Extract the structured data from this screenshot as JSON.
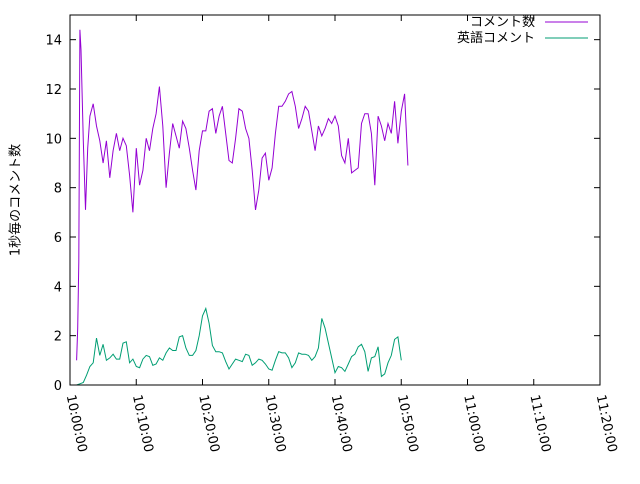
{
  "chart_data": {
    "type": "line",
    "title": "",
    "xlabel": "",
    "ylabel": "1秒毎のコメント数",
    "xlim": [
      "10:00:00",
      "11:20:00"
    ],
    "ylim": [
      0,
      15
    ],
    "xticks": [
      "10:00:00",
      "10:10:00",
      "10:20:00",
      "10:30:00",
      "10:40:00",
      "10:50:00",
      "11:00:00",
      "11:10:00",
      "11:20:00"
    ],
    "yticks": [
      "0",
      "2",
      "4",
      "6",
      "8",
      "10",
      "12",
      "14"
    ],
    "legend_position": "top-right",
    "grid": false,
    "series": [
      {
        "name": "コメント数",
        "color": "#9400d3",
        "points": [
          [
            "10:01:00",
            1.0
          ],
          [
            "10:01:10",
            2.3
          ],
          [
            "10:01:20",
            5.0
          ],
          [
            "10:01:30",
            14.4
          ],
          [
            "10:01:40",
            13.6
          ],
          [
            "10:02:00",
            9.9
          ],
          [
            "10:02:20",
            7.1
          ],
          [
            "10:02:40",
            9.6
          ],
          [
            "10:03:00",
            10.9
          ],
          [
            "10:03:30",
            11.4
          ],
          [
            "10:04:00",
            10.5
          ],
          [
            "10:04:30",
            9.9
          ],
          [
            "10:05:00",
            9.0
          ],
          [
            "10:05:30",
            9.9
          ],
          [
            "10:06:00",
            8.4
          ],
          [
            "10:06:30",
            9.5
          ],
          [
            "10:07:00",
            10.2
          ],
          [
            "10:07:30",
            9.5
          ],
          [
            "10:08:00",
            10.0
          ],
          [
            "10:08:30",
            9.7
          ],
          [
            "10:09:00",
            8.5
          ],
          [
            "10:09:30",
            7.0
          ],
          [
            "10:10:00",
            9.6
          ],
          [
            "10:10:30",
            8.1
          ],
          [
            "10:11:00",
            8.7
          ],
          [
            "10:11:30",
            10.0
          ],
          [
            "10:12:00",
            9.5
          ],
          [
            "10:12:30",
            10.4
          ],
          [
            "10:13:00",
            11.0
          ],
          [
            "10:13:30",
            12.1
          ],
          [
            "10:14:00",
            10.5
          ],
          [
            "10:14:30",
            8.0
          ],
          [
            "10:15:00",
            9.4
          ],
          [
            "10:15:30",
            10.6
          ],
          [
            "10:16:00",
            10.1
          ],
          [
            "10:16:30",
            9.6
          ],
          [
            "10:17:00",
            10.7
          ],
          [
            "10:17:30",
            10.4
          ],
          [
            "10:18:00",
            9.6
          ],
          [
            "10:18:30",
            8.7
          ],
          [
            "10:19:00",
            7.9
          ],
          [
            "10:19:30",
            9.5
          ],
          [
            "10:20:00",
            10.3
          ],
          [
            "10:20:30",
            10.3
          ],
          [
            "10:21:00",
            11.1
          ],
          [
            "10:21:30",
            11.2
          ],
          [
            "10:22:00",
            10.2
          ],
          [
            "10:22:30",
            10.9
          ],
          [
            "10:23:00",
            11.3
          ],
          [
            "10:23:30",
            10.2
          ],
          [
            "10:24:00",
            9.1
          ],
          [
            "10:24:30",
            9.0
          ],
          [
            "10:25:00",
            10.0
          ],
          [
            "10:25:30",
            11.2
          ],
          [
            "10:26:00",
            11.1
          ],
          [
            "10:26:30",
            10.4
          ],
          [
            "10:27:00",
            10.0
          ],
          [
            "10:27:30",
            8.7
          ],
          [
            "10:28:00",
            7.1
          ],
          [
            "10:28:30",
            7.9
          ],
          [
            "10:29:00",
            9.2
          ],
          [
            "10:29:30",
            9.4
          ],
          [
            "10:30:00",
            8.3
          ],
          [
            "10:30:30",
            8.8
          ],
          [
            "10:31:00",
            10.2
          ],
          [
            "10:31:30",
            11.3
          ],
          [
            "10:32:00",
            11.3
          ],
          [
            "10:32:30",
            11.5
          ],
          [
            "10:33:00",
            11.8
          ],
          [
            "10:33:30",
            11.9
          ],
          [
            "10:34:00",
            11.3
          ],
          [
            "10:34:30",
            10.4
          ],
          [
            "10:35:00",
            10.8
          ],
          [
            "10:35:30",
            11.3
          ],
          [
            "10:36:00",
            11.1
          ],
          [
            "10:36:30",
            10.3
          ],
          [
            "10:37:00",
            9.5
          ],
          [
            "10:37:30",
            10.5
          ],
          [
            "10:38:00",
            10.1
          ],
          [
            "10:38:30",
            10.4
          ],
          [
            "10:39:00",
            10.8
          ],
          [
            "10:39:30",
            10.6
          ],
          [
            "10:40:00",
            10.9
          ],
          [
            "10:40:30",
            10.5
          ],
          [
            "10:41:00",
            9.3
          ],
          [
            "10:41:30",
            9.0
          ],
          [
            "10:42:00",
            10.0
          ],
          [
            "10:42:30",
            8.6
          ],
          [
            "10:43:00",
            8.7
          ],
          [
            "10:43:30",
            8.8
          ],
          [
            "10:44:00",
            10.6
          ],
          [
            "10:44:30",
            11.0
          ],
          [
            "10:45:00",
            11.0
          ],
          [
            "10:45:30",
            10.2
          ],
          [
            "10:46:00",
            8.1
          ],
          [
            "10:46:30",
            10.9
          ],
          [
            "10:47:00",
            10.5
          ],
          [
            "10:47:30",
            9.9
          ],
          [
            "10:48:00",
            10.6
          ],
          [
            "10:48:30",
            10.2
          ],
          [
            "10:49:00",
            11.5
          ],
          [
            "10:49:30",
            9.8
          ],
          [
            "10:50:00",
            11.1
          ],
          [
            "10:50:30",
            11.8
          ],
          [
            "10:51:00",
            8.9
          ]
        ]
      },
      {
        "name": "英語コメント",
        "color": "#009e73",
        "points": [
          [
            "10:01:00",
            0.0
          ],
          [
            "10:01:30",
            0.05
          ],
          [
            "10:02:00",
            0.1
          ],
          [
            "10:02:30",
            0.4
          ],
          [
            "10:03:00",
            0.75
          ],
          [
            "10:03:30",
            0.9
          ],
          [
            "10:04:00",
            1.9
          ],
          [
            "10:04:30",
            1.2
          ],
          [
            "10:05:00",
            1.65
          ],
          [
            "10:05:30",
            1.0
          ],
          [
            "10:06:00",
            1.1
          ],
          [
            "10:06:30",
            1.25
          ],
          [
            "10:07:00",
            1.05
          ],
          [
            "10:07:30",
            1.05
          ],
          [
            "10:08:00",
            1.7
          ],
          [
            "10:08:30",
            1.75
          ],
          [
            "10:09:00",
            0.9
          ],
          [
            "10:09:30",
            1.05
          ],
          [
            "10:10:00",
            0.75
          ],
          [
            "10:10:30",
            0.7
          ],
          [
            "10:11:00",
            1.05
          ],
          [
            "10:11:30",
            1.2
          ],
          [
            "10:12:00",
            1.15
          ],
          [
            "10:12:30",
            0.8
          ],
          [
            "10:13:00",
            0.85
          ],
          [
            "10:13:30",
            1.1
          ],
          [
            "10:14:00",
            1.0
          ],
          [
            "10:14:30",
            1.3
          ],
          [
            "10:15:00",
            1.5
          ],
          [
            "10:15:30",
            1.4
          ],
          [
            "10:16:00",
            1.4
          ],
          [
            "10:16:30",
            1.95
          ],
          [
            "10:17:00",
            2.0
          ],
          [
            "10:17:30",
            1.5
          ],
          [
            "10:18:00",
            1.2
          ],
          [
            "10:18:30",
            1.2
          ],
          [
            "10:19:00",
            1.4
          ],
          [
            "10:19:30",
            2.0
          ],
          [
            "10:20:00",
            2.8
          ],
          [
            "10:20:30",
            3.1
          ],
          [
            "10:21:00",
            2.5
          ],
          [
            "10:21:30",
            1.6
          ],
          [
            "10:22:00",
            1.35
          ],
          [
            "10:22:30",
            1.35
          ],
          [
            "10:23:00",
            1.3
          ],
          [
            "10:23:30",
            0.95
          ],
          [
            "10:24:00",
            0.65
          ],
          [
            "10:24:30",
            0.85
          ],
          [
            "10:25:00",
            1.05
          ],
          [
            "10:25:30",
            1.0
          ],
          [
            "10:26:00",
            0.95
          ],
          [
            "10:26:30",
            1.25
          ],
          [
            "10:27:00",
            1.2
          ],
          [
            "10:27:30",
            0.8
          ],
          [
            "10:28:00",
            0.9
          ],
          [
            "10:28:30",
            1.05
          ],
          [
            "10:29:00",
            1.0
          ],
          [
            "10:29:30",
            0.85
          ],
          [
            "10:30:00",
            0.65
          ],
          [
            "10:30:30",
            0.6
          ],
          [
            "10:31:00",
            1.0
          ],
          [
            "10:31:30",
            1.35
          ],
          [
            "10:32:00",
            1.3
          ],
          [
            "10:32:30",
            1.3
          ],
          [
            "10:33:00",
            1.1
          ],
          [
            "10:33:30",
            0.7
          ],
          [
            "10:34:00",
            0.9
          ],
          [
            "10:34:30",
            1.3
          ],
          [
            "10:35:00",
            1.25
          ],
          [
            "10:35:30",
            1.25
          ],
          [
            "10:36:00",
            1.2
          ],
          [
            "10:36:30",
            1.0
          ],
          [
            "10:37:00",
            1.15
          ],
          [
            "10:37:30",
            1.5
          ],
          [
            "10:38:00",
            2.7
          ],
          [
            "10:38:30",
            2.3
          ],
          [
            "10:39:00",
            1.7
          ],
          [
            "10:39:30",
            1.1
          ],
          [
            "10:40:00",
            0.5
          ],
          [
            "10:40:30",
            0.75
          ],
          [
            "10:41:00",
            0.7
          ],
          [
            "10:41:30",
            0.55
          ],
          [
            "10:42:00",
            0.85
          ],
          [
            "10:42:30",
            1.15
          ],
          [
            "10:43:00",
            1.25
          ],
          [
            "10:43:30",
            1.55
          ],
          [
            "10:44:00",
            1.65
          ],
          [
            "10:44:30",
            1.35
          ],
          [
            "10:45:00",
            0.55
          ],
          [
            "10:45:30",
            1.1
          ],
          [
            "10:46:00",
            1.15
          ],
          [
            "10:46:30",
            1.55
          ],
          [
            "10:47:00",
            0.35
          ],
          [
            "10:47:30",
            0.45
          ],
          [
            "10:48:00",
            0.9
          ],
          [
            "10:48:30",
            1.2
          ],
          [
            "10:49:00",
            1.85
          ],
          [
            "10:49:30",
            1.95
          ],
          [
            "10:50:00",
            1.0
          ]
        ]
      }
    ]
  }
}
